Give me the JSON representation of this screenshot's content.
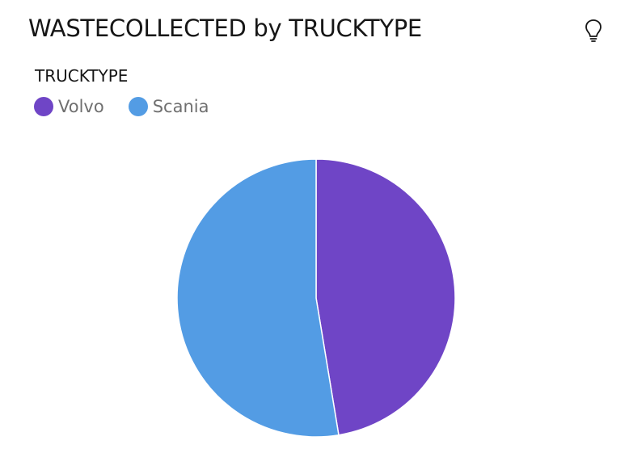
{
  "header": {
    "title": "WASTECOLLECTED by TRUCKTYPE",
    "insight_icon": "lightbulb-icon"
  },
  "legend": {
    "title": "TRUCKTYPE",
    "items": [
      {
        "label": "Volvo",
        "color": "#6f45c6"
      },
      {
        "label": "Scania",
        "color": "#539ce4"
      }
    ]
  },
  "chart_data": {
    "type": "pie",
    "title": "WASTECOLLECTED by TRUCKTYPE",
    "legend_title": "TRUCKTYPE",
    "legend_position": "top-left",
    "categories": [
      "Volvo",
      "Scania"
    ],
    "values": [
      47.4,
      52.6
    ],
    "colors": [
      "#6f45c6",
      "#539ce4"
    ]
  }
}
